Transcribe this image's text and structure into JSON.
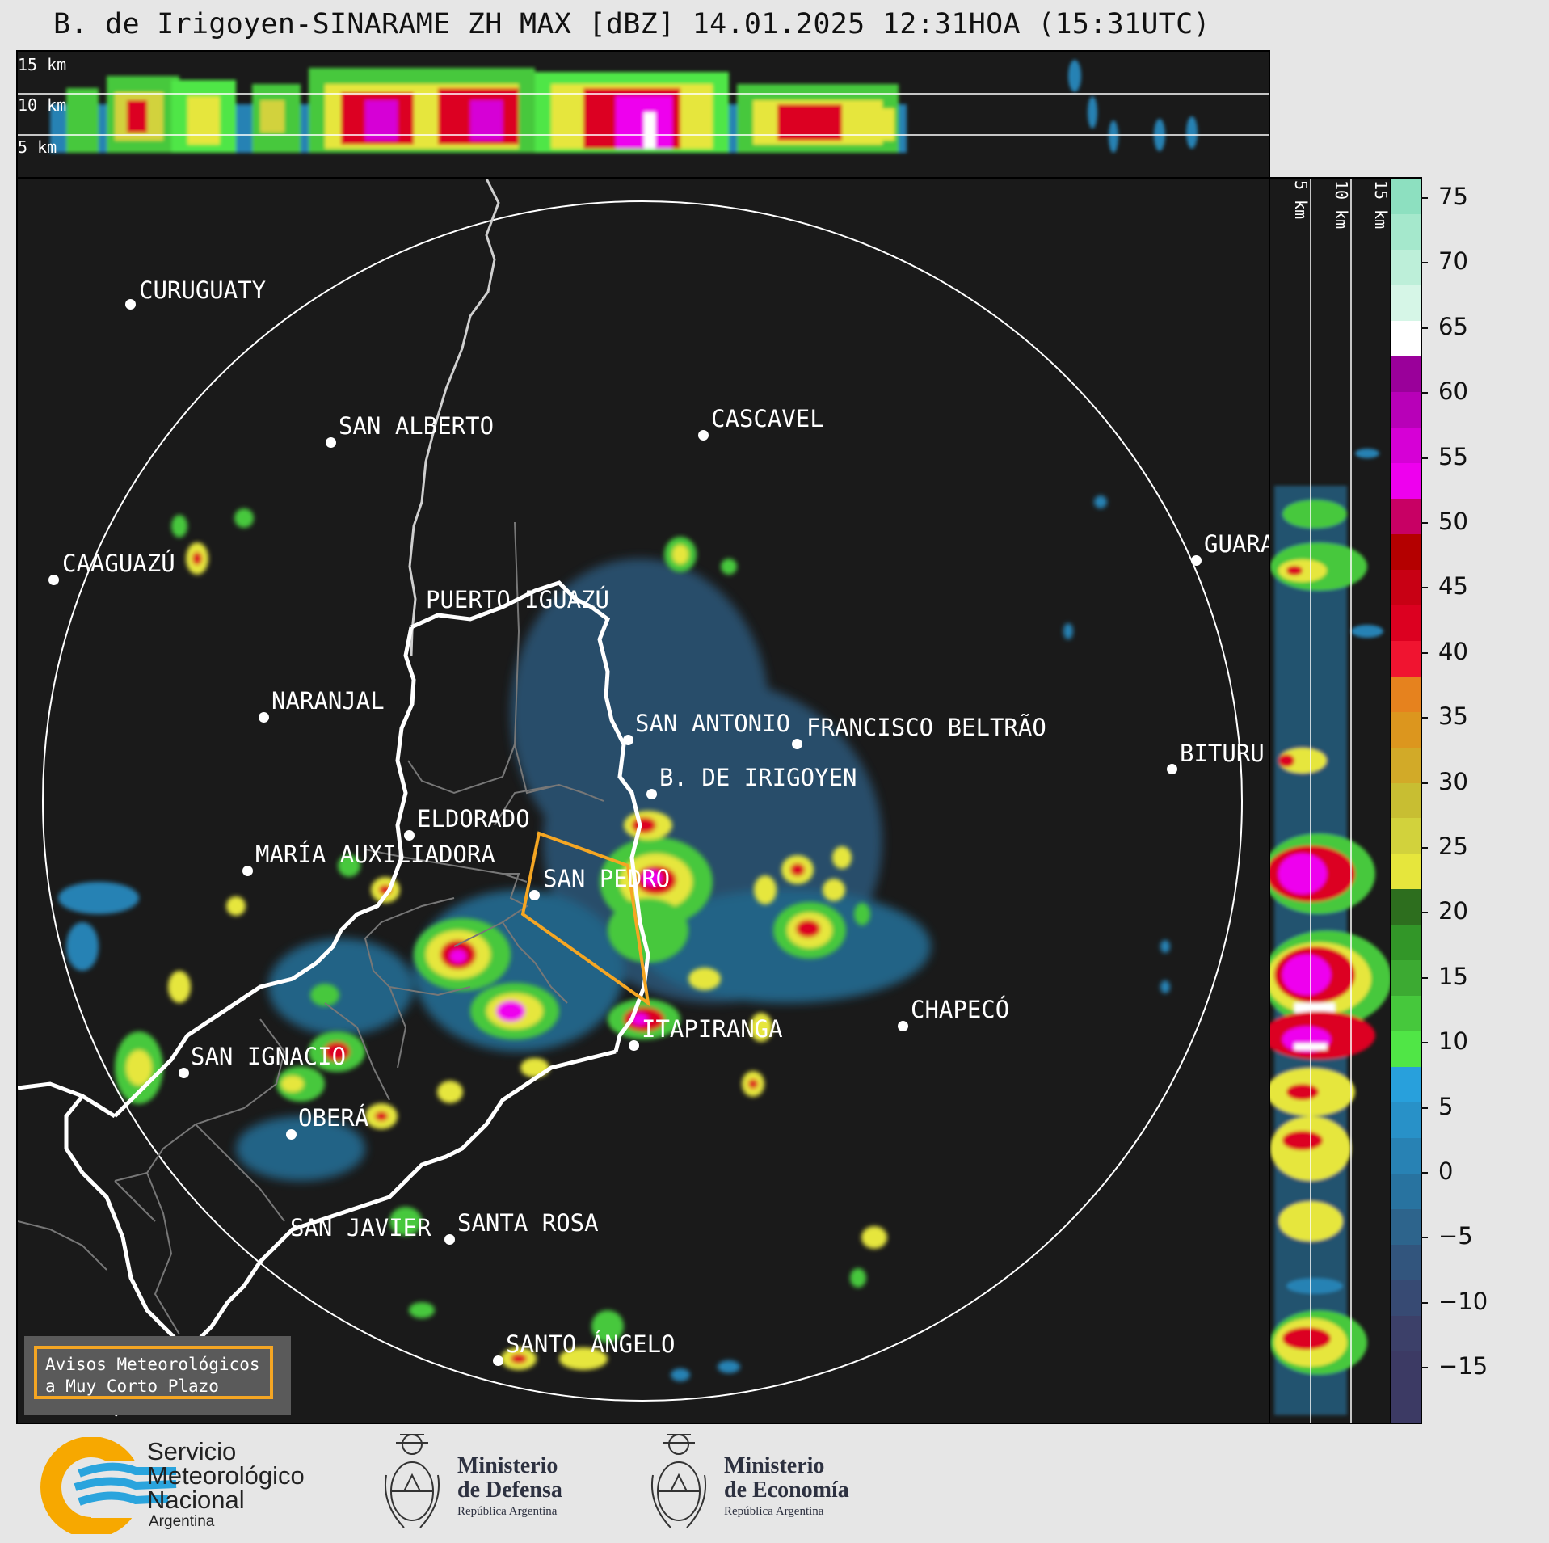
{
  "title": "B. de Irigoyen-SINARAME ZH MAX [dBZ] 14.01.2025 12:31HOA (15:31UTC)",
  "top_panel": {
    "labels": [
      "15 km",
      "10 km",
      "5 km"
    ]
  },
  "side_panel": {
    "labels": [
      "5 km",
      "10 km",
      "15 km"
    ]
  },
  "colorbar": {
    "ticks": [
      "75",
      "70",
      "65",
      "60",
      "55",
      "50",
      "45",
      "40",
      "35",
      "30",
      "25",
      "20",
      "15",
      "10",
      "5",
      "0",
      "−5",
      "−10",
      "−15"
    ],
    "colors": [
      "#8de0c0",
      "#a5e8cc",
      "#bdefd9",
      "#d6f6e7",
      "#ffffff",
      "#9a009a",
      "#b800b8",
      "#d600d6",
      "#ee00ee",
      "#c80064",
      "#b40000",
      "#c80014",
      "#dc0020",
      "#f01430",
      "#e6821e",
      "#dc961e",
      "#d2aa28",
      "#c8be32",
      "#d2d23c",
      "#e6e63c",
      "#2d6e1e",
      "#329628",
      "#3caa32",
      "#46c83c",
      "#50e646",
      "#28a0dc",
      "#2891c8",
      "#2882b4",
      "#2873a0",
      "#2d648c",
      "#32557d",
      "#374a73",
      "#3c4069",
      "#3c3a64",
      "#3c3a64"
    ]
  },
  "cities": [
    {
      "name": "CURUGUATY"
    },
    {
      "name": "SAN ALBERTO"
    },
    {
      "name": "CASCAVEL"
    },
    {
      "name": "CAAGUAZÚ"
    },
    {
      "name": "GUARA"
    },
    {
      "name": "PUERTO IGUAZÚ"
    },
    {
      "name": "NARANJAL"
    },
    {
      "name": "SAN ANTONIO"
    },
    {
      "name": "FRANCISCO BELTRÃO"
    },
    {
      "name": "BITURU"
    },
    {
      "name": "B. DE IRIGOYEN"
    },
    {
      "name": "ELDORADO"
    },
    {
      "name": "MARÍA AUXILIADORA"
    },
    {
      "name": "SAN PEDRO"
    },
    {
      "name": "CHAPECÓ"
    },
    {
      "name": "ITAPIRANGA"
    },
    {
      "name": "SAN IGNACIO"
    },
    {
      "name": "OBERÁ"
    },
    {
      "name": "SAN JAVIER"
    },
    {
      "name": "SANTA ROSA"
    },
    {
      "name": "SANTO ÁNGELO"
    }
  ],
  "warning_legend": {
    "line1": "Avisos Meteorológicos",
    "line2": "a Muy Corto Plazo"
  },
  "footer": {
    "smn": {
      "line1": "Servicio",
      "line2": "Meteorológico",
      "line3": "Nacional",
      "line4": "Argentina"
    },
    "defensa": {
      "line1": "Ministerio",
      "line2": "de Defensa",
      "line3": "República Argentina"
    },
    "economia": {
      "line1": "Ministerio",
      "line2": "de Economía",
      "line3": "República Argentina"
    }
  },
  "colors": {
    "warning_polygon": "#f5a623",
    "background": "#1a1a1a"
  }
}
